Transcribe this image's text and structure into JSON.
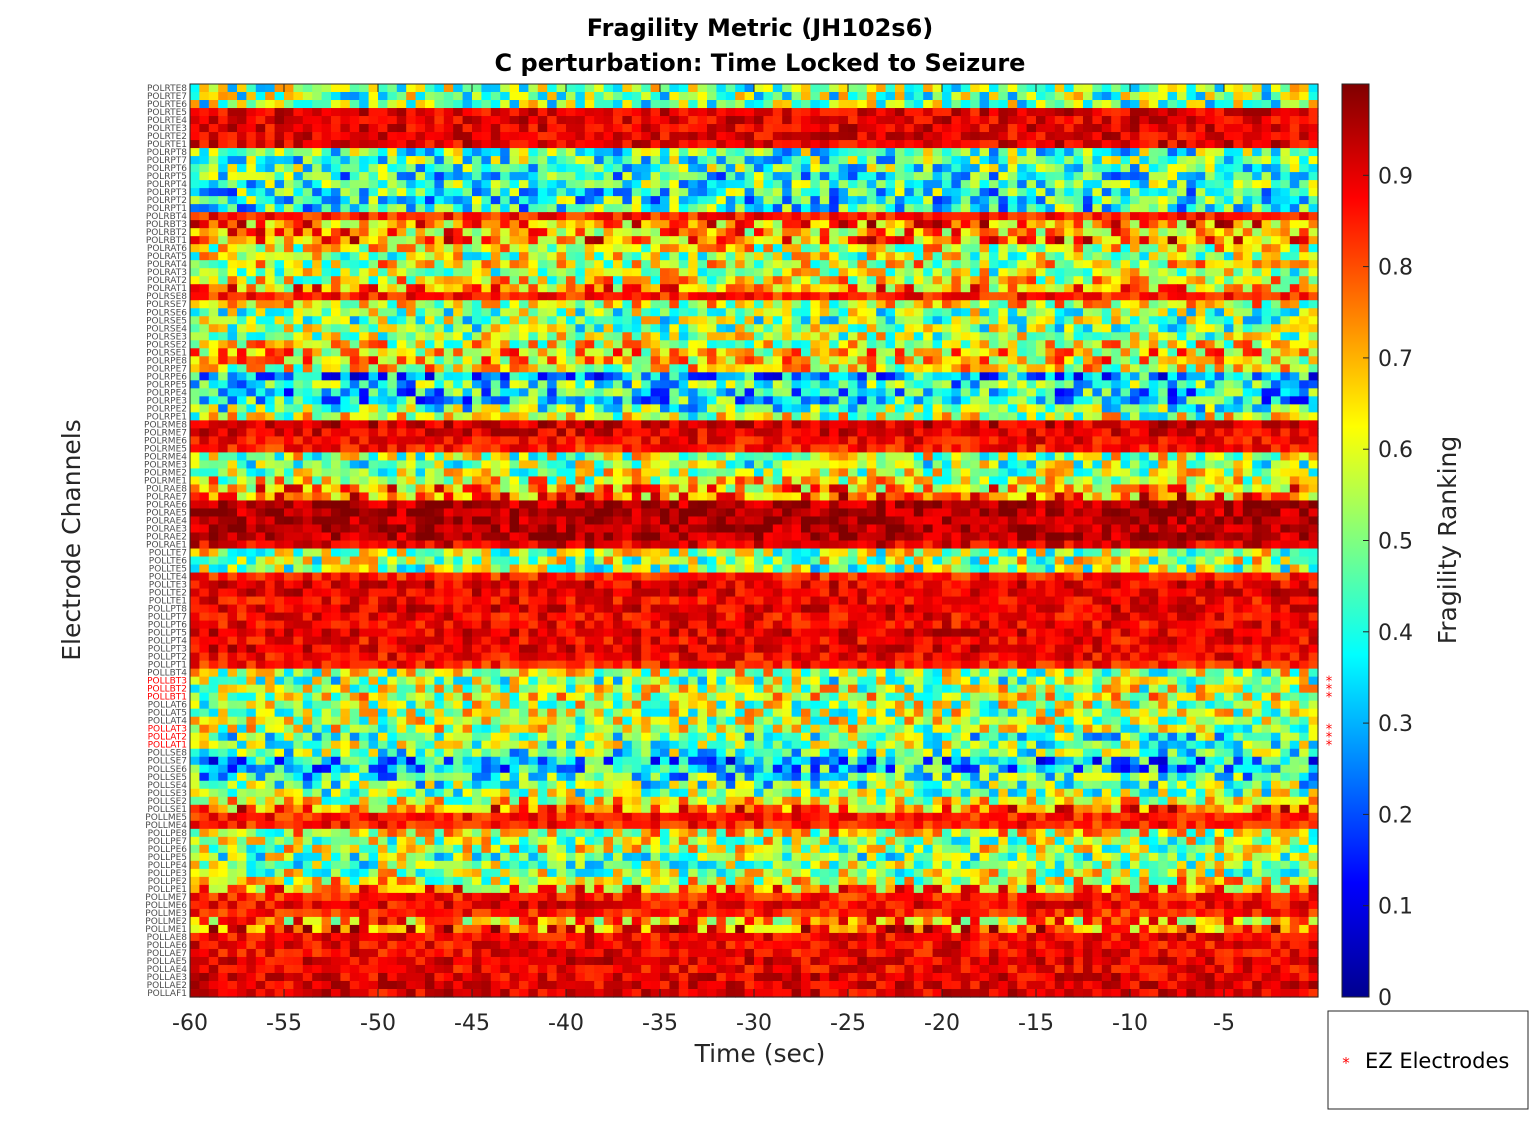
{
  "chart_data": {
    "type": "heatmap",
    "title": "Fragility Metric (JH102s6)",
    "subtitle": "C perturbation:  Time Locked to Seizure",
    "xlabel": "Time (sec)",
    "ylabel": "Electrode Channels",
    "colorbar_label": "Fragility Ranking",
    "colormap": "jet",
    "xlim": [
      -60,
      0
    ],
    "clim": [
      0,
      1
    ],
    "x_ticks": [
      -60,
      -55,
      -50,
      -45,
      -40,
      -35,
      -30,
      -25,
      -20,
      -15,
      -10,
      -5
    ],
    "colorbar_ticks": [
      0,
      0.1,
      0.2,
      0.3,
      0.4,
      0.5,
      0.6,
      0.7,
      0.8,
      0.9
    ],
    "colorbar_tick_labels": [
      "0",
      "0.1",
      "0.2",
      "0.3",
      "0.4",
      "0.5",
      "0.6",
      "0.7",
      "0.8",
      "0.9"
    ],
    "ez_color": "#ff0000",
    "legend": {
      "label": "EZ Electrodes",
      "marker": "*",
      "placement": "bottom-right, outside axes"
    },
    "channels": [
      {
        "name": "POLRTE8",
        "level": 0.5,
        "ez": false
      },
      {
        "name": "POLRTE7",
        "level": 0.5,
        "ez": false
      },
      {
        "name": "POLRTE6",
        "level": 0.5,
        "ez": false
      },
      {
        "name": "POLRTE5",
        "level": 0.9,
        "ez": false
      },
      {
        "name": "POLRTE4",
        "level": 0.9,
        "ez": false
      },
      {
        "name": "POLRTE3",
        "level": 0.9,
        "ez": false
      },
      {
        "name": "POLRTE2",
        "level": 0.9,
        "ez": false
      },
      {
        "name": "POLRTE1",
        "level": 0.9,
        "ez": false
      },
      {
        "name": "POLRPT8",
        "level": 0.45,
        "ez": false
      },
      {
        "name": "POLRPT7",
        "level": 0.45,
        "ez": false
      },
      {
        "name": "POLRPT6",
        "level": 0.45,
        "ez": false
      },
      {
        "name": "POLRPT5",
        "level": 0.4,
        "ez": false
      },
      {
        "name": "POLRPT4",
        "level": 0.45,
        "ez": false
      },
      {
        "name": "POLRPT3",
        "level": 0.4,
        "ez": false
      },
      {
        "name": "POLRPT2",
        "level": 0.4,
        "ez": false
      },
      {
        "name": "POLRPT1",
        "level": 0.4,
        "ez": false
      },
      {
        "name": "POLRBT4",
        "level": 0.85,
        "ez": false
      },
      {
        "name": "POLRBT3",
        "level": 0.75,
        "ez": false
      },
      {
        "name": "POLRBT2",
        "level": 0.7,
        "ez": false
      },
      {
        "name": "POLRBT1",
        "level": 0.75,
        "ez": false
      },
      {
        "name": "POLRAT6",
        "level": 0.6,
        "ez": false
      },
      {
        "name": "POLRAT5",
        "level": 0.55,
        "ez": false
      },
      {
        "name": "POLRAT4",
        "level": 0.6,
        "ez": false
      },
      {
        "name": "POLRAT3",
        "level": 0.55,
        "ez": false
      },
      {
        "name": "POLRAT2",
        "level": 0.6,
        "ez": false
      },
      {
        "name": "POLRAT1",
        "level": 0.7,
        "ez": false
      },
      {
        "name": "POLRSE8",
        "level": 0.85,
        "ez": false
      },
      {
        "name": "POLRSE7",
        "level": 0.6,
        "ez": false
      },
      {
        "name": "POLRSE6",
        "level": 0.5,
        "ez": false
      },
      {
        "name": "POLRSE5",
        "level": 0.5,
        "ez": false
      },
      {
        "name": "POLRSE4",
        "level": 0.5,
        "ez": false
      },
      {
        "name": "POLRSE3",
        "level": 0.55,
        "ez": false
      },
      {
        "name": "POLRSE2",
        "level": 0.6,
        "ez": false
      },
      {
        "name": "POLRSE1",
        "level": 0.65,
        "ez": false
      },
      {
        "name": "POLRPE8",
        "level": 0.65,
        "ez": false
      },
      {
        "name": "POLRPE7",
        "level": 0.6,
        "ez": false
      },
      {
        "name": "POLRPE6",
        "level": 0.3,
        "ez": false
      },
      {
        "name": "POLRPE5",
        "level": 0.4,
        "ez": false
      },
      {
        "name": "POLRPE4",
        "level": 0.35,
        "ez": false
      },
      {
        "name": "POLRPE3",
        "level": 0.35,
        "ez": false
      },
      {
        "name": "POLRPE2",
        "level": 0.45,
        "ez": false
      },
      {
        "name": "POLRPE1",
        "level": 0.55,
        "ez": false
      },
      {
        "name": "POLRME8",
        "level": 0.92,
        "ez": false
      },
      {
        "name": "POLRME7",
        "level": 0.9,
        "ez": false
      },
      {
        "name": "POLRME6",
        "level": 0.88,
        "ez": false
      },
      {
        "name": "POLRME5",
        "level": 0.85,
        "ez": false
      },
      {
        "name": "POLRME4",
        "level": 0.55,
        "ez": false
      },
      {
        "name": "POLRME3",
        "level": 0.5,
        "ez": false
      },
      {
        "name": "POLRME2",
        "level": 0.55,
        "ez": false
      },
      {
        "name": "POLRME1",
        "level": 0.6,
        "ez": false
      },
      {
        "name": "POLRAE8",
        "level": 0.7,
        "ez": false
      },
      {
        "name": "POLRAE7",
        "level": 0.75,
        "ez": false
      },
      {
        "name": "POLRAE6",
        "level": 0.95,
        "ez": false
      },
      {
        "name": "POLRAE5",
        "level": 0.95,
        "ez": false
      },
      {
        "name": "POLRAE4",
        "level": 0.95,
        "ez": false
      },
      {
        "name": "POLRAE3",
        "level": 0.95,
        "ez": false
      },
      {
        "name": "POLRAE2",
        "level": 0.95,
        "ez": false
      },
      {
        "name": "POLRAE1",
        "level": 0.9,
        "ez": false
      },
      {
        "name": "POLLTE7",
        "level": 0.55,
        "ez": false
      },
      {
        "name": "POLLTE6",
        "level": 0.55,
        "ez": false
      },
      {
        "name": "POLLTE5",
        "level": 0.5,
        "ez": false
      },
      {
        "name": "POLLTE4",
        "level": 0.85,
        "ez": false
      },
      {
        "name": "POLLTE3",
        "level": 0.9,
        "ez": false
      },
      {
        "name": "POLLTE2",
        "level": 0.9,
        "ez": false
      },
      {
        "name": "POLLTE1",
        "level": 0.88,
        "ez": false
      },
      {
        "name": "POLLPT8",
        "level": 0.9,
        "ez": false
      },
      {
        "name": "POLLPT7",
        "level": 0.88,
        "ez": false
      },
      {
        "name": "POLLPT6",
        "level": 0.88,
        "ez": false
      },
      {
        "name": "POLLPT5",
        "level": 0.9,
        "ez": false
      },
      {
        "name": "POLLPT4",
        "level": 0.88,
        "ez": false
      },
      {
        "name": "POLLPT3",
        "level": 0.9,
        "ez": false
      },
      {
        "name": "POLLPT2",
        "level": 0.88,
        "ez": false
      },
      {
        "name": "POLLPT1",
        "level": 0.85,
        "ez": false
      },
      {
        "name": "POLLBT4",
        "level": 0.55,
        "ez": false
      },
      {
        "name": "POLLBT3",
        "level": 0.5,
        "ez": true
      },
      {
        "name": "POLLBT2",
        "level": 0.55,
        "ez": true
      },
      {
        "name": "POLLBT1",
        "level": 0.6,
        "ez": true
      },
      {
        "name": "POLLAT6",
        "level": 0.55,
        "ez": false
      },
      {
        "name": "POLLAT5",
        "level": 0.55,
        "ez": false
      },
      {
        "name": "POLLAT4",
        "level": 0.55,
        "ez": false
      },
      {
        "name": "POLLAT3",
        "level": 0.55,
        "ez": true
      },
      {
        "name": "POLLAT2",
        "level": 0.45,
        "ez": true
      },
      {
        "name": "POLLAT1",
        "level": 0.5,
        "ez": true
      },
      {
        "name": "POLLSE8",
        "level": 0.45,
        "ez": false
      },
      {
        "name": "POLLSE7",
        "level": 0.3,
        "ez": false
      },
      {
        "name": "POLLSE6",
        "level": 0.35,
        "ez": false
      },
      {
        "name": "POLLSE5",
        "level": 0.4,
        "ez": false
      },
      {
        "name": "POLLSE4",
        "level": 0.45,
        "ez": false
      },
      {
        "name": "POLLSE3",
        "level": 0.5,
        "ez": false
      },
      {
        "name": "POLLSE2",
        "level": 0.6,
        "ez": false
      },
      {
        "name": "POLLSE1",
        "level": 0.75,
        "ez": false
      },
      {
        "name": "POLLME5",
        "level": 0.85,
        "ez": false
      },
      {
        "name": "POLLME4",
        "level": 0.85,
        "ez": false
      },
      {
        "name": "POLLPE8",
        "level": 0.6,
        "ez": false
      },
      {
        "name": "POLLPE7",
        "level": 0.55,
        "ez": false
      },
      {
        "name": "POLLPE6",
        "level": 0.55,
        "ez": false
      },
      {
        "name": "POLLPE5",
        "level": 0.5,
        "ez": false
      },
      {
        "name": "POLLPE4",
        "level": 0.5,
        "ez": false
      },
      {
        "name": "POLLPE3",
        "level": 0.55,
        "ez": false
      },
      {
        "name": "POLLPE2",
        "level": 0.6,
        "ez": false
      },
      {
        "name": "POLLPE1",
        "level": 0.7,
        "ez": false
      },
      {
        "name": "POLLME7",
        "level": 0.85,
        "ez": false
      },
      {
        "name": "POLLME6",
        "level": 0.88,
        "ez": false
      },
      {
        "name": "POLLME3",
        "level": 0.85,
        "ez": false
      },
      {
        "name": "POLLME2",
        "level": 0.7,
        "ez": false
      },
      {
        "name": "POLLME1",
        "level": 0.8,
        "ez": false
      },
      {
        "name": "POLLAE8",
        "level": 0.88,
        "ez": false
      },
      {
        "name": "POLLAE6",
        "level": 0.88,
        "ez": false
      },
      {
        "name": "POLLAE7",
        "level": 0.88,
        "ez": false
      },
      {
        "name": "POLLAE5",
        "level": 0.9,
        "ez": false
      },
      {
        "name": "POLLAE4",
        "level": 0.88,
        "ez": false
      },
      {
        "name": "POLLAE3",
        "level": 0.9,
        "ez": false
      },
      {
        "name": "POLLAE2",
        "level": 0.9,
        "ez": false
      },
      {
        "name": "POLLAF1",
        "level": 0.9,
        "ez": false
      }
    ]
  }
}
